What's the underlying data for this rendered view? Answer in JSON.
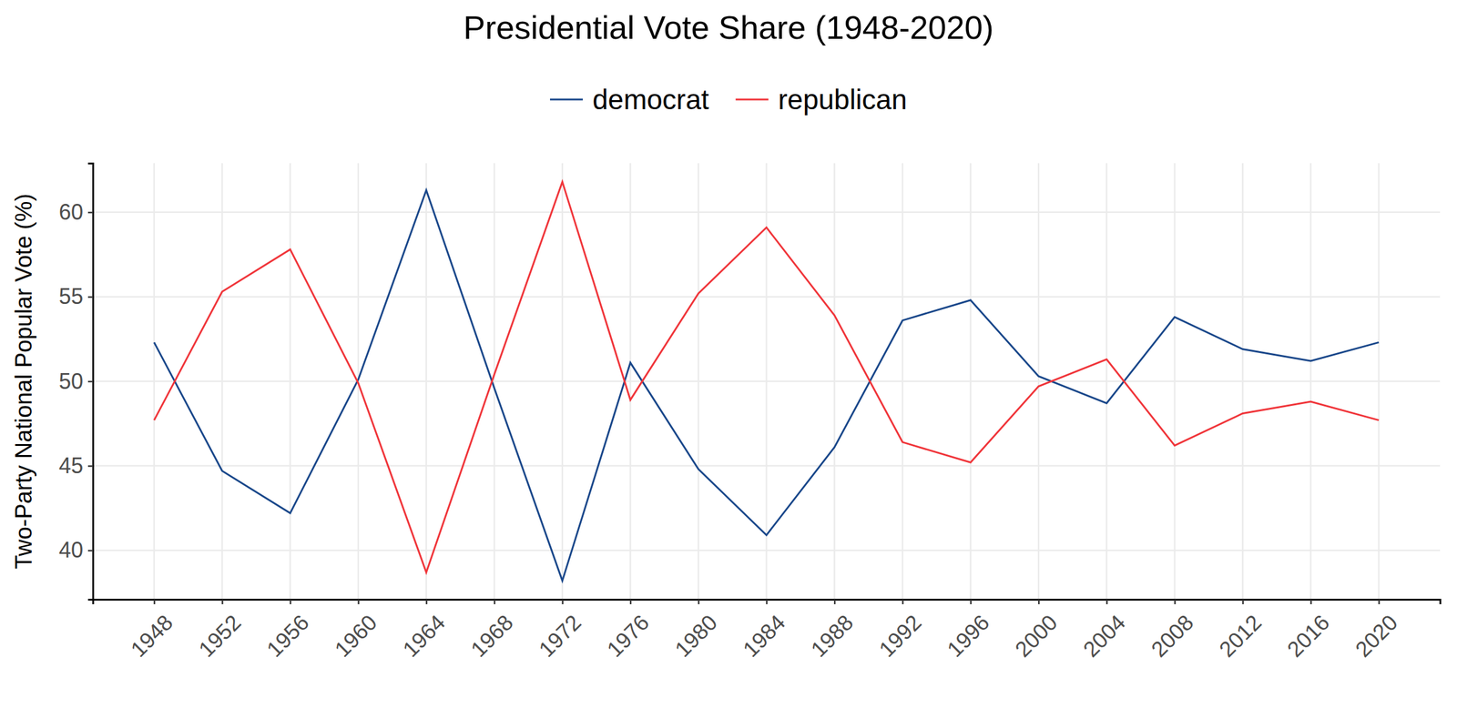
{
  "chart_data": {
    "type": "line",
    "title": "Presidential Vote Share (1948-2020)",
    "y_label": "Two-Party National Popular Vote (%)",
    "x": [
      1948,
      1952,
      1956,
      1960,
      1964,
      1968,
      1972,
      1976,
      1980,
      1984,
      1988,
      1992,
      1996,
      2000,
      2004,
      2008,
      2012,
      2016,
      2020
    ],
    "series": [
      {
        "name": "democrat",
        "color": "#19478a",
        "values": [
          52.3,
          44.7,
          42.2,
          50.1,
          61.3,
          49.6,
          38.2,
          51.1,
          44.8,
          40.9,
          46.1,
          53.6,
          54.8,
          50.3,
          48.7,
          53.8,
          51.9,
          51.2,
          52.3
        ]
      },
      {
        "name": "republican",
        "color": "#f0353a",
        "values": [
          47.7,
          55.3,
          57.8,
          49.9,
          38.7,
          50.4,
          61.8,
          48.9,
          55.2,
          59.1,
          53.9,
          46.4,
          45.2,
          49.7,
          51.3,
          46.2,
          48.1,
          48.8,
          47.7
        ]
      }
    ],
    "xlim": [
      1944.4,
      2023.6
    ],
    "xticks": [
      1948,
      1952,
      1956,
      1960,
      1964,
      1968,
      1972,
      1976,
      1980,
      1984,
      1988,
      1992,
      1996,
      2000,
      2004,
      2008,
      2012,
      2016,
      2020
    ],
    "ylim": [
      37.1,
      62.9
    ],
    "yticks": [
      40,
      45,
      50,
      55,
      60
    ],
    "grid": true,
    "legend": "top"
  }
}
